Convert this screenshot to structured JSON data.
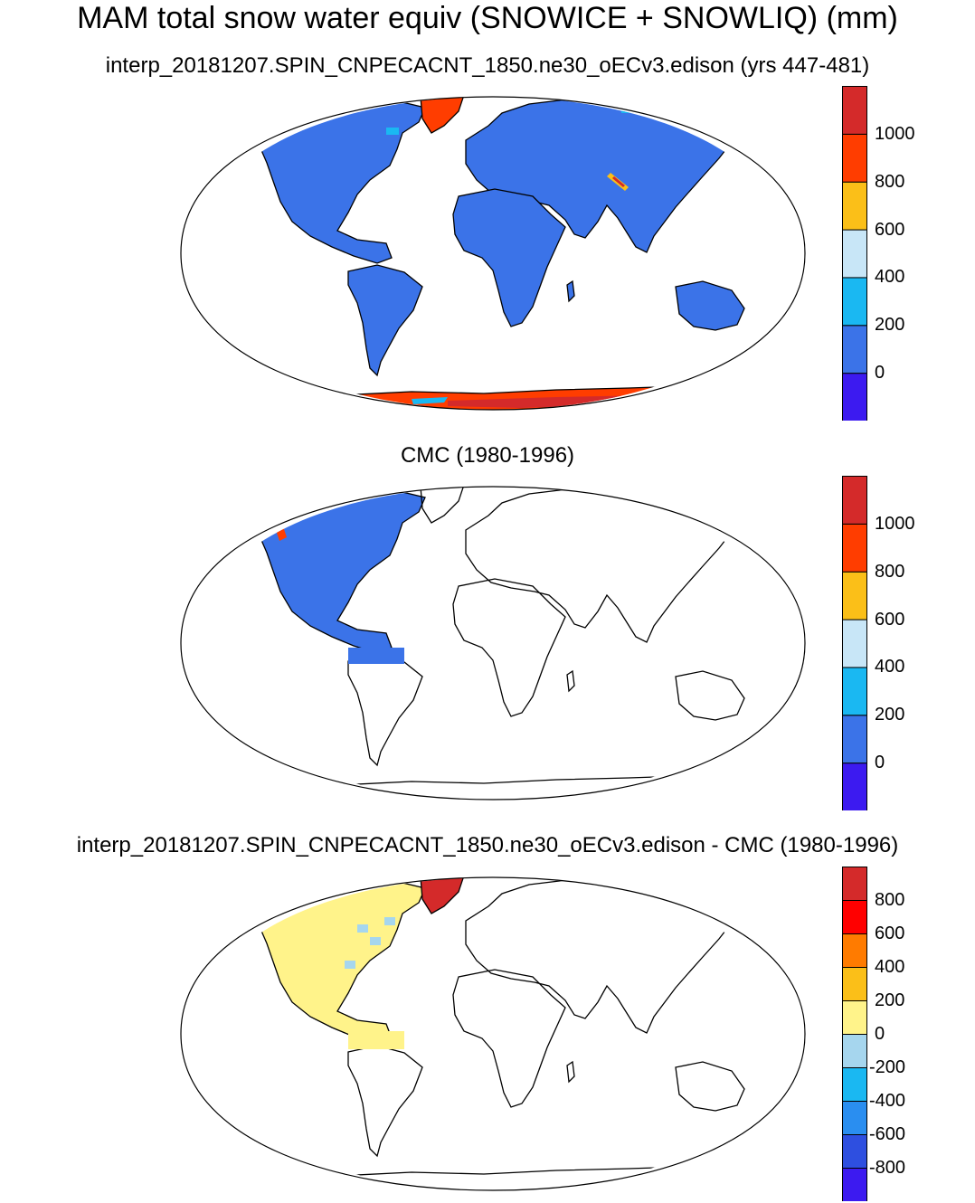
{
  "title": "MAM total snow water equiv (SNOWICE + SNOWLIQ) (mm)",
  "panels": [
    {
      "id": "model",
      "title": "interp_20181207.SPIN_CNPECACNT_1850.ne30_oECv3.edison (yrs 447-481)",
      "land_fill": "#3b73e8",
      "colorbar": {
        "colors": [
          "#3c1af0",
          "#3b73e8",
          "#1ab8f2",
          "#c8e6f7",
          "#fbbf18",
          "#ff3d00",
          "#d42a2a"
        ],
        "labels": [
          "0",
          "200",
          "400",
          "600",
          "800",
          "1000"
        ]
      },
      "features": [
        "global-land-snow",
        "greenland-high",
        "antarctica-high",
        "tibet-high"
      ]
    },
    {
      "id": "obs",
      "title": "CMC (1980-1996)",
      "land_fill": "#3b73e8",
      "colorbar": {
        "colors": [
          "#3c1af0",
          "#3b73e8",
          "#1ab8f2",
          "#c8e6f7",
          "#fbbf18",
          "#ff3d00",
          "#d42a2a"
        ],
        "labels": [
          "0",
          "200",
          "400",
          "600",
          "800",
          "1000"
        ]
      },
      "features": [
        "north-america-only"
      ]
    },
    {
      "id": "diff",
      "title": "interp_20181207.SPIN_CNPECACNT_1850.ne30_oECv3.edison - CMC (1980-1996)",
      "land_fill": "#fff38a",
      "colorbar": {
        "colors": [
          "#3c1af0",
          "#2e4fe0",
          "#2a8ef0",
          "#1ab8f2",
          "#a6d6ee",
          "#fff38a",
          "#fbbf18",
          "#ff7b00",
          "#ff0000",
          "#d42a2a"
        ],
        "labels": [
          "-800",
          "-600",
          "-400",
          "-200",
          "0",
          "200",
          "400",
          "600",
          "800"
        ]
      },
      "features": [
        "north-america-only",
        "greenland-positive"
      ]
    }
  ]
}
